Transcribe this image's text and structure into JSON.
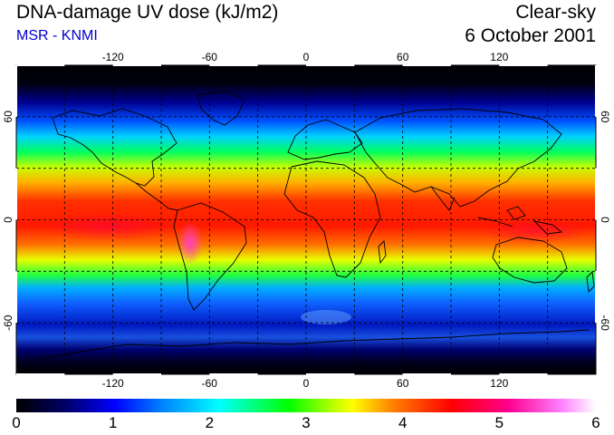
{
  "header": {
    "title": "DNA-damage UV dose (kJ/m2)",
    "source": "MSR - KNMI",
    "sky_condition": "Clear-sky",
    "date": "6 October 2001"
  },
  "map": {
    "projection": "equirectangular",
    "lon_range": [
      -180,
      180
    ],
    "lat_range": [
      -90,
      90
    ],
    "lon_ticks": [
      "-120",
      "-60",
      "0",
      "60",
      "120"
    ],
    "lat_ticks": [
      "60",
      "0",
      "-60"
    ],
    "gridlines": "dashed every 30 degrees",
    "field": "UV dose, maximal in tropics, near zero at high latitudes"
  },
  "colorbar": {
    "labels": [
      "0",
      "1",
      "2",
      "3",
      "4",
      "5",
      "6"
    ],
    "colors": [
      "#000000",
      "#0000c8",
      "#0080ff",
      "#00ffff",
      "#00ff00",
      "#ffff00",
      "#ff8000",
      "#ff0000",
      "#ff0090",
      "#ffffff"
    ]
  }
}
